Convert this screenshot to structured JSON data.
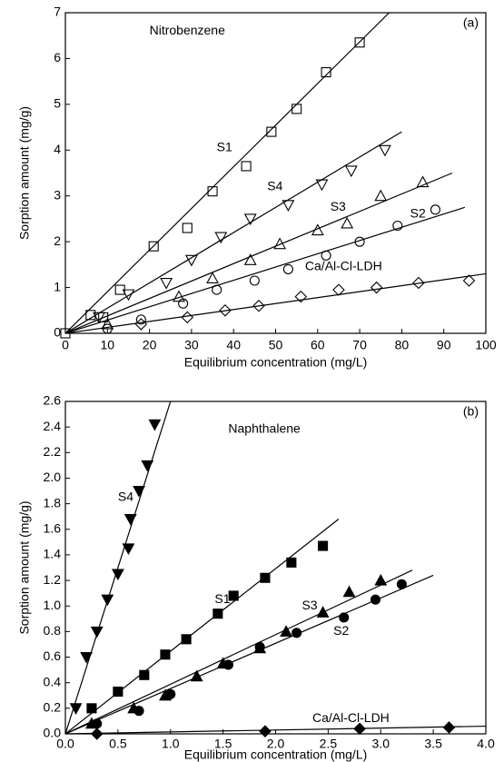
{
  "chart_data": [
    {
      "type": "scatter",
      "panel_label": "(a)",
      "annotation": "Nitrobenzene",
      "x_label": "Equilibrium concentration (mg/L)",
      "y_label": "Sorption amount (mg/g)",
      "xlim": [
        0,
        100
      ],
      "ylim": [
        0,
        7
      ],
      "xticks": [
        0,
        10,
        20,
        30,
        40,
        50,
        60,
        70,
        80,
        90,
        100
      ],
      "yticks": [
        0,
        1,
        2,
        3,
        4,
        5,
        6,
        7
      ],
      "marker_fill": "none",
      "series": [
        {
          "name": "S1",
          "color": "#000000",
          "marker": "square",
          "x": [
            0,
            6,
            9,
            13,
            21,
            29,
            35,
            43,
            49,
            55,
            62,
            70
          ],
          "values": [
            0,
            0.4,
            0.35,
            0.95,
            1.9,
            2.3,
            3.1,
            3.65,
            4.4,
            4.9,
            5.7,
            6.35
          ],
          "fit": {
            "x": [
              0,
              77
            ],
            "values": [
              0,
              7
            ]
          }
        },
        {
          "name": "S4",
          "color": "#000000",
          "marker": "tri-down",
          "x": [
            8,
            15,
            24,
            30,
            37,
            44,
            53,
            61,
            68,
            76
          ],
          "values": [
            0.35,
            0.85,
            1.1,
            1.6,
            2.1,
            2.5,
            2.8,
            3.25,
            3.55,
            4.0
          ],
          "fit": {
            "x": [
              0,
              80
            ],
            "values": [
              0,
              4.4
            ]
          }
        },
        {
          "name": "S3",
          "color": "#000000",
          "marker": "tri-up",
          "x": [
            10,
            27,
            35,
            44,
            51,
            60,
            67,
            75,
            85
          ],
          "values": [
            0.2,
            0.8,
            1.2,
            1.6,
            1.95,
            2.25,
            2.4,
            3.0,
            3.3
          ],
          "fit": {
            "x": [
              0,
              92
            ],
            "values": [
              0,
              3.5
            ]
          }
        },
        {
          "name": "S2",
          "color": "#000000",
          "marker": "circle",
          "x": [
            10,
            18,
            28,
            36,
            45,
            53,
            62,
            70,
            79,
            88
          ],
          "values": [
            0.1,
            0.3,
            0.65,
            0.95,
            1.15,
            1.4,
            1.7,
            2.0,
            2.35,
            2.7
          ],
          "fit": {
            "x": [
              0,
              95
            ],
            "values": [
              0,
              2.75
            ]
          }
        },
        {
          "name": "Ca/Al-Cl-LDH",
          "color": "#000000",
          "marker": "diamond",
          "x": [
            18,
            29,
            38,
            46,
            56,
            65,
            74,
            84,
            96
          ],
          "values": [
            0.2,
            0.35,
            0.5,
            0.6,
            0.8,
            0.95,
            1.0,
            1.1,
            1.15
          ],
          "fit": {
            "x": [
              0,
              100
            ],
            "values": [
              0,
              1.3
            ]
          }
        }
      ]
    },
    {
      "type": "scatter",
      "panel_label": "(b)",
      "annotation": "Naphthalene",
      "x_label": "Equilibrium concentration (mg/L)",
      "y_label": "Sorption amount (mg/g)",
      "xlim": [
        0,
        4
      ],
      "ylim": [
        0,
        2.6
      ],
      "xticks": [
        {
          "value": 0,
          "label": "0.0"
        },
        0.5,
        {
          "value": 1,
          "label": "1.0"
        },
        1.5,
        {
          "value": 2,
          "label": "2.0"
        },
        2.5,
        {
          "value": 3,
          "label": "3.0"
        },
        3.5,
        {
          "value": 4,
          "label": "4.0"
        }
      ],
      "yticks": [
        {
          "value": 0,
          "label": "0.0"
        },
        0.2,
        0.4,
        0.6,
        0.8,
        {
          "value": 1,
          "label": "1.0"
        },
        1.2,
        1.4,
        1.6,
        1.8,
        {
          "value": 2,
          "label": "2.0"
        },
        2.2,
        2.4,
        2.6
      ],
      "marker_fill": "#000000",
      "series": [
        {
          "name": "S4",
          "color": "#000000",
          "marker": "tri-down",
          "x": [
            0.1,
            0.2,
            0.3,
            0.4,
            0.5,
            0.6,
            0.62,
            0.7,
            0.78,
            0.85
          ],
          "values": [
            0.2,
            0.6,
            0.8,
            1.05,
            1.25,
            1.45,
            1.68,
            1.9,
            2.1,
            2.42
          ],
          "fit": {
            "x": [
              0,
              1
            ],
            "values": [
              0,
              2.6
            ]
          }
        },
        {
          "name": "S1",
          "color": "#000000",
          "marker": "square",
          "x": [
            0.25,
            0.5,
            0.75,
            0.95,
            1.15,
            1.45,
            1.6,
            1.9,
            2.15,
            2.45
          ],
          "values": [
            0.2,
            0.33,
            0.46,
            0.62,
            0.74,
            0.94,
            1.08,
            1.22,
            1.34,
            1.47
          ],
          "fit": {
            "x": [
              0,
              2.6
            ],
            "values": [
              0,
              1.68
            ]
          }
        },
        {
          "name": "S3",
          "color": "#000000",
          "marker": "tri-up",
          "x": [
            0.25,
            0.65,
            0.95,
            1.25,
            1.5,
            1.85,
            2.1,
            2.45,
            2.7,
            3.0
          ],
          "values": [
            0.08,
            0.2,
            0.3,
            0.45,
            0.55,
            0.67,
            0.8,
            0.95,
            1.11,
            1.2
          ],
          "fit": {
            "x": [
              0,
              3.3
            ],
            "values": [
              0,
              1.28
            ]
          }
        },
        {
          "name": "S2",
          "color": "#000000",
          "marker": "circle",
          "x": [
            0.3,
            0.7,
            1.0,
            1.55,
            1.85,
            2.2,
            2.65,
            2.95,
            3.2
          ],
          "values": [
            0.08,
            0.18,
            0.31,
            0.54,
            0.68,
            0.79,
            0.91,
            1.05,
            1.17
          ],
          "fit": {
            "x": [
              0,
              3.5
            ],
            "values": [
              0,
              1.24
            ]
          }
        },
        {
          "name": "Ca/Al-Cl-LDH",
          "color": "#000000",
          "marker": "diamond",
          "x": [
            0.3,
            1.9,
            2.8,
            3.65
          ],
          "values": [
            0.0,
            0.02,
            0.04,
            0.05
          ],
          "fit": {
            "x": [
              0,
              4
            ],
            "values": [
              0,
              0.06
            ]
          }
        }
      ]
    }
  ]
}
